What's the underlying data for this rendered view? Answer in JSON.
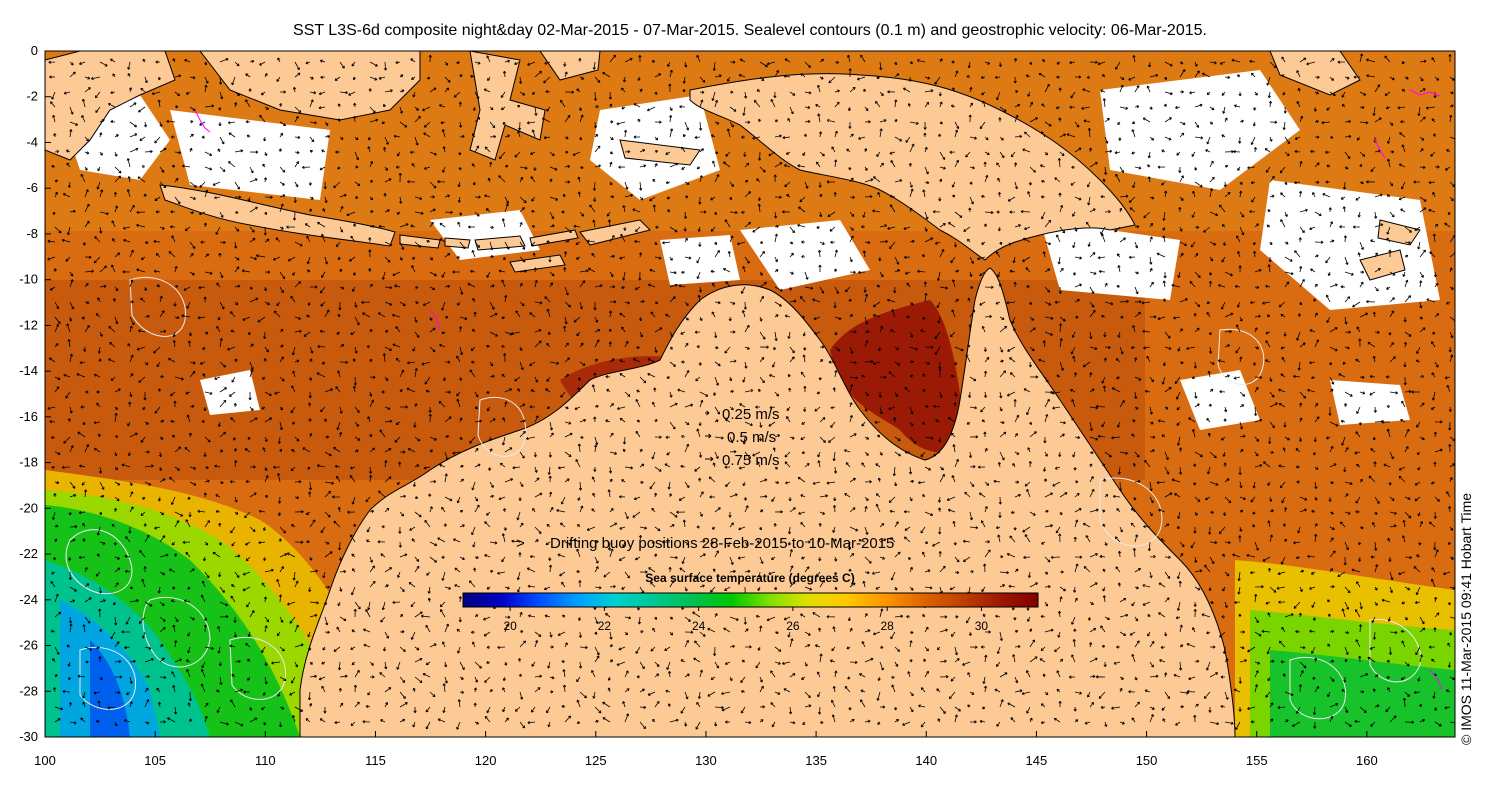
{
  "title": "SST L3S-6d composite night&day 02-Mar-2015 - 07-Mar-2015. Sealevel contours (0.1 m) and geostrophic velocity: 06-Mar-2015.",
  "credit": "© IMOS 11-Mar-2015 09:41 Hobart Time",
  "map": {
    "lon_range": [
      100,
      164
    ],
    "lat_range": [
      -30,
      0
    ],
    "x_ticks": [
      100,
      105,
      110,
      115,
      120,
      125,
      130,
      135,
      140,
      145,
      150,
      155,
      160
    ],
    "x_tick_labels": [
      "100",
      "105",
      "110",
      "115",
      "120",
      "125",
      "130",
      "135",
      "140",
      "145",
      "150",
      "155",
      "160"
    ],
    "y_ticks": [
      0,
      -2,
      -4,
      -6,
      -8,
      -10,
      -12,
      -14,
      -16,
      -18,
      -20,
      -22,
      -24,
      -26,
      -28,
      -30
    ],
    "y_tick_labels": [
      "0",
      "-2",
      "-4",
      "-6",
      "-8",
      "-10",
      "-12",
      "-14",
      "-16",
      "-18",
      "-20",
      "-22",
      "-24",
      "-26",
      "-28",
      "-30"
    ],
    "land_color": "#fdc995",
    "cloud_color": "#ffffff",
    "contour_color": "#e8e8e8",
    "vector_color": "#000000"
  },
  "velocity_legend": {
    "items": [
      {
        "label": "0.25 m/s",
        "speed": 0.25
      },
      {
        "label": "0.5 m/s",
        "speed": 0.5
      },
      {
        "label": "0.75 m/s",
        "speed": 0.75
      }
    ]
  },
  "buoy_legend": {
    "symbol": ">",
    "label": "Drifting buoy positions 28-Feb-2015 to 10-Mar-2015",
    "color": "#ff00ff"
  },
  "colorbar": {
    "title": "Sea surface temperature (degrees C)",
    "range": [
      19,
      31.2
    ],
    "ticks": [
      20,
      22,
      24,
      26,
      28,
      30
    ],
    "tick_labels": [
      "20",
      "22",
      "24",
      "26",
      "28",
      "30"
    ],
    "colors": [
      "#000080",
      "#0000c8",
      "#0050ff",
      "#00a0ff",
      "#00d0d0",
      "#00c890",
      "#00c050",
      "#00c800",
      "#80e000",
      "#e0e000",
      "#ffc800",
      "#ff9600",
      "#e06400",
      "#c04000",
      "#a01800",
      "#800000"
    ]
  }
}
